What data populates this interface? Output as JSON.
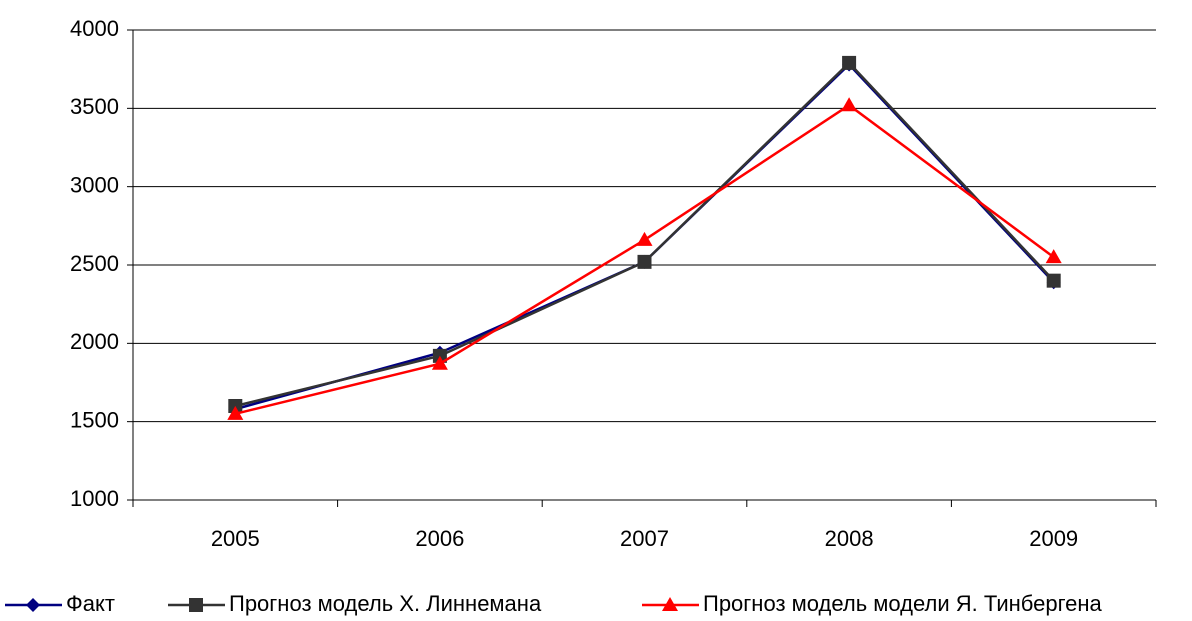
{
  "chart_data": {
    "type": "line",
    "categories": [
      "2005",
      "2006",
      "2007",
      "2008",
      "2009"
    ],
    "series": [
      {
        "name": "Факт",
        "color": "#000080",
        "marker": "diamond",
        "values": [
          1580,
          1940,
          2520,
          3780,
          2390
        ]
      },
      {
        "name": "Прогноз модель Х. Линнемана",
        "color": "#333333",
        "marker": "square",
        "values": [
          1600,
          1920,
          2520,
          3790,
          2400
        ]
      },
      {
        "name": "Прогноз модель модели Я. Тинбергена",
        "color": "#ff0000",
        "marker": "triangle",
        "values": [
          1550,
          1870,
          2660,
          3520,
          2550
        ]
      }
    ],
    "ylim": [
      1000,
      4000
    ],
    "yticks": [
      1000,
      1500,
      2000,
      2500,
      3000,
      3500,
      4000
    ],
    "grid": true,
    "legend": "bottom"
  }
}
